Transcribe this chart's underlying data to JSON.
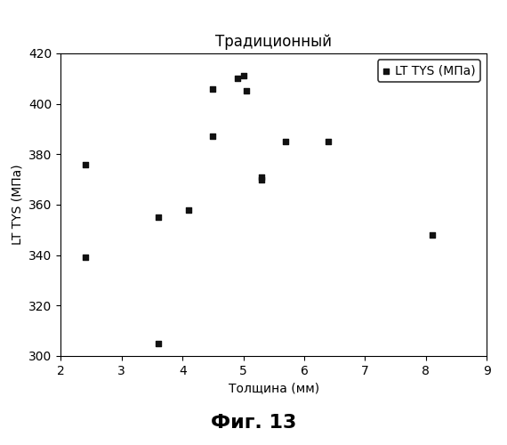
{
  "x": [
    2.4,
    2.4,
    3.6,
    3.6,
    4.1,
    4.5,
    4.5,
    4.9,
    5.0,
    5.05,
    5.3,
    5.3,
    5.7,
    6.4,
    8.1
  ],
  "y": [
    376,
    339,
    355,
    305,
    358,
    387,
    406,
    410,
    411,
    405,
    370,
    371,
    385,
    385,
    348
  ],
  "title": "Традиционный",
  "xlabel": "Толщина (мм)",
  "ylabel": "LT TYS (МПа)",
  "legend_label": "LT TYS (МПа)",
  "xlim": [
    2,
    9
  ],
  "ylim": [
    300,
    420
  ],
  "xticks": [
    2,
    3,
    4,
    5,
    6,
    7,
    8,
    9
  ],
  "yticks": [
    300,
    320,
    340,
    360,
    380,
    400,
    420
  ],
  "fig_caption": "Фиг. 13",
  "marker_color": "#111111",
  "marker_size": 5,
  "bg_color": "#ffffff",
  "title_fontsize": 12,
  "label_fontsize": 10,
  "tick_fontsize": 10,
  "caption_fontsize": 16
}
